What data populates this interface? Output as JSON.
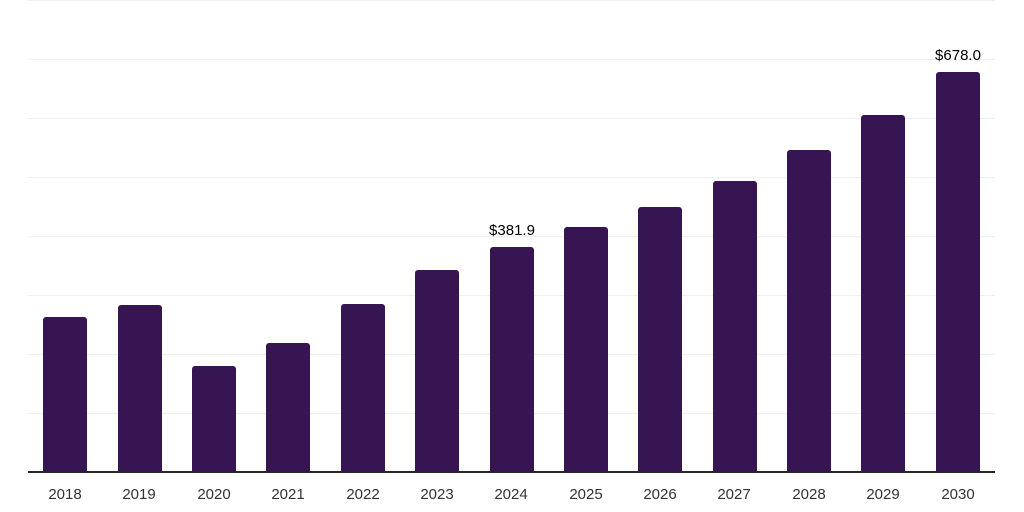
{
  "chart_data": {
    "type": "bar",
    "title": "",
    "xlabel": "",
    "ylabel": "",
    "categories": [
      "2018",
      "2019",
      "2020",
      "2021",
      "2022",
      "2023",
      "2024",
      "2025",
      "2026",
      "2027",
      "2028",
      "2029",
      "2030"
    ],
    "values": [
      263,
      283,
      180,
      219,
      285,
      342,
      381.9,
      415,
      450,
      494,
      545,
      605,
      678
    ],
    "data_labels": {
      "2024": "$381.9",
      "2030": "$678.0"
    },
    "ylim": [
      0,
      800
    ],
    "grid_step": 100,
    "grid_on": true,
    "legend": "none",
    "colors": {
      "bar": "#371553",
      "gridline": "#f0f0f0",
      "axis_line": "#262626",
      "x_label": "#333333",
      "data_label": "#000000"
    }
  }
}
